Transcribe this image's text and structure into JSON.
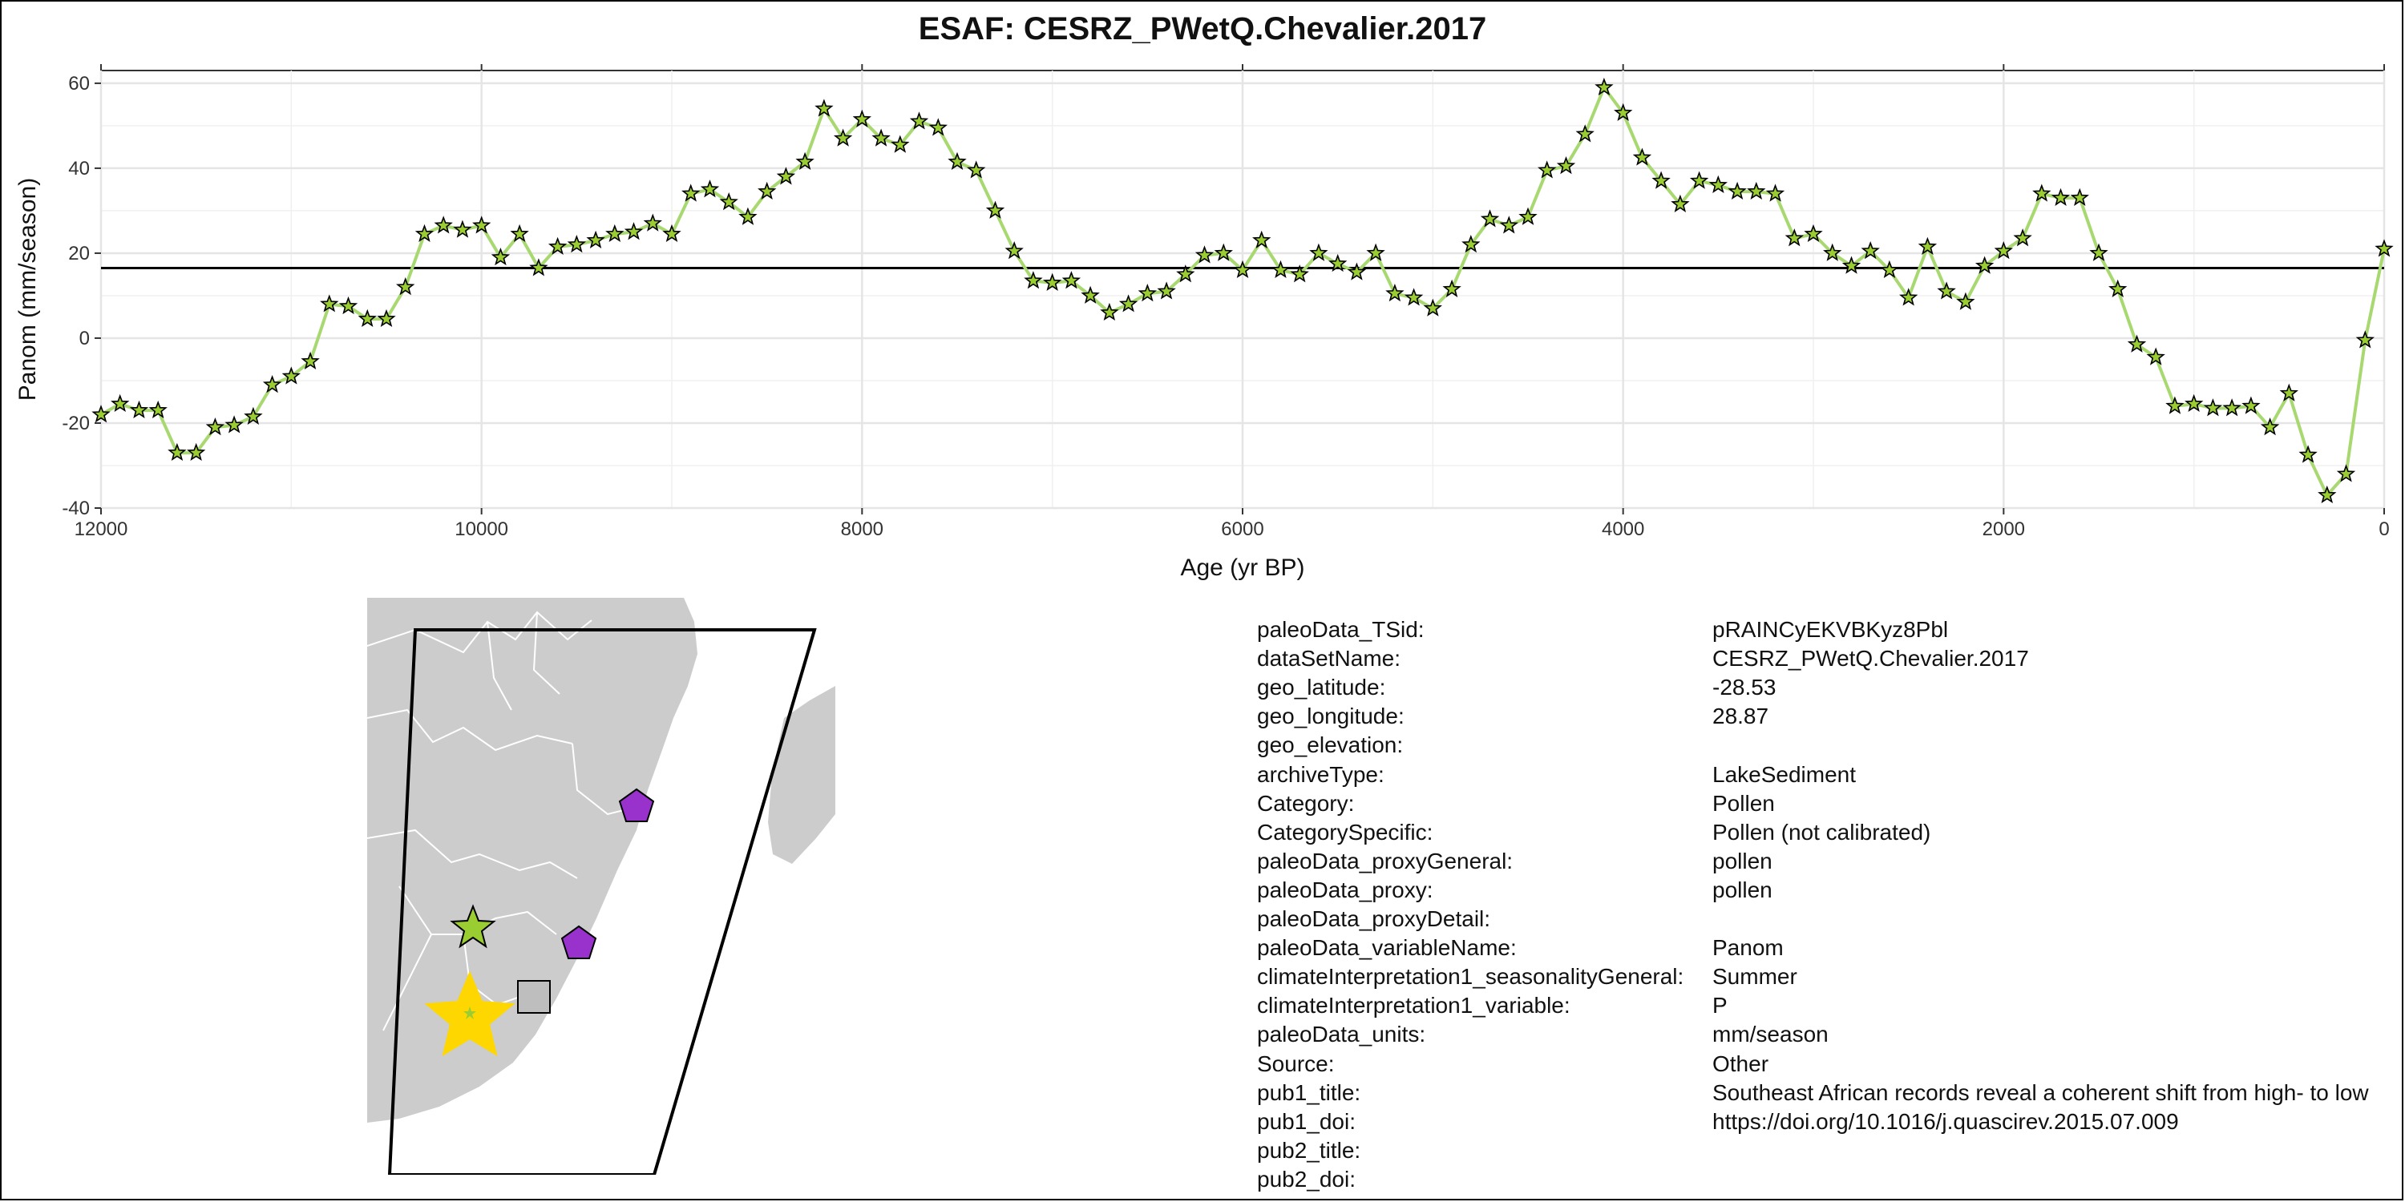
{
  "chart_data": {
    "type": "line",
    "title": "ESAF: CESRZ_PWetQ.Chevalier.2017",
    "xlabel": "Age (yr BP)",
    "ylabel": "Panom (mm/season)",
    "xlim": [
      12000,
      0
    ],
    "ylim": [
      -40,
      63
    ],
    "x_reversed": true,
    "x_ticks": [
      12000,
      10000,
      8000,
      6000,
      4000,
      2000,
      0
    ],
    "y_ticks": [
      -40,
      -20,
      0,
      20,
      40,
      60
    ],
    "grid": true,
    "reference_line_y": 16.5,
    "series": [
      {
        "line_color": "#a8d870",
        "marker": "star",
        "marker_fill": "#9acd32",
        "marker_edge": "#000000",
        "points": [
          [
            12000,
            -18
          ],
          [
            11900,
            -15.5
          ],
          [
            11800,
            -17
          ],
          [
            11700,
            -17
          ],
          [
            11600,
            -27
          ],
          [
            11500,
            -27
          ],
          [
            11400,
            -21
          ],
          [
            11300,
            -20.5
          ],
          [
            11200,
            -18.5
          ],
          [
            11100,
            -11
          ],
          [
            11000,
            -9
          ],
          [
            10900,
            -5.5
          ],
          [
            10800,
            8
          ],
          [
            10700,
            7.5
          ],
          [
            10600,
            4.5
          ],
          [
            10500,
            4.5
          ],
          [
            10400,
            12
          ],
          [
            10300,
            24.5
          ],
          [
            10200,
            26.5
          ],
          [
            10100,
            25.5
          ],
          [
            10000,
            26.5
          ],
          [
            9900,
            19
          ],
          [
            9800,
            24.5
          ],
          [
            9700,
            16.5
          ],
          [
            9600,
            21.5
          ],
          [
            9500,
            22
          ],
          [
            9400,
            23
          ],
          [
            9300,
            24.5
          ],
          [
            9200,
            25
          ],
          [
            9100,
            27
          ],
          [
            9000,
            24.5
          ],
          [
            8900,
            34
          ],
          [
            8800,
            35
          ],
          [
            8700,
            32
          ],
          [
            8600,
            28.5
          ],
          [
            8500,
            34.5
          ],
          [
            8400,
            38
          ],
          [
            8300,
            41.5
          ],
          [
            8200,
            54
          ],
          [
            8100,
            47
          ],
          [
            8000,
            51.5
          ],
          [
            7900,
            47
          ],
          [
            7800,
            45.5
          ],
          [
            7700,
            51
          ],
          [
            7600,
            49.5
          ],
          [
            7500,
            41.5
          ],
          [
            7400,
            39.5
          ],
          [
            7300,
            30
          ],
          [
            7200,
            20.5
          ],
          [
            7100,
            13.5
          ],
          [
            7000,
            13
          ],
          [
            6900,
            13.5
          ],
          [
            6800,
            10
          ],
          [
            6700,
            6
          ],
          [
            6600,
            8
          ],
          [
            6500,
            10.5
          ],
          [
            6400,
            11
          ],
          [
            6300,
            15
          ],
          [
            6200,
            19.5
          ],
          [
            6100,
            20
          ],
          [
            6000,
            16
          ],
          [
            5900,
            23
          ],
          [
            5800,
            16
          ],
          [
            5700,
            15
          ],
          [
            5600,
            20
          ],
          [
            5500,
            17.5
          ],
          [
            5400,
            15.5
          ],
          [
            5300,
            20
          ],
          [
            5200,
            10.5
          ],
          [
            5100,
            9.5
          ],
          [
            5000,
            7
          ],
          [
            4900,
            11.5
          ],
          [
            4800,
            22
          ],
          [
            4700,
            28
          ],
          [
            4600,
            26.5
          ],
          [
            4500,
            28.5
          ],
          [
            4400,
            39.5
          ],
          [
            4300,
            40.5
          ],
          [
            4200,
            48
          ],
          [
            4100,
            59
          ],
          [
            4000,
            53
          ],
          [
            3900,
            42.5
          ],
          [
            3800,
            37
          ],
          [
            3700,
            31.5
          ],
          [
            3600,
            37
          ],
          [
            3500,
            36
          ],
          [
            3400,
            34.5
          ],
          [
            3300,
            34.5
          ],
          [
            3200,
            34
          ],
          [
            3100,
            23.5
          ],
          [
            3000,
            24.5
          ],
          [
            2900,
            20
          ],
          [
            2800,
            17
          ],
          [
            2700,
            20.5
          ],
          [
            2600,
            16
          ],
          [
            2500,
            9.5
          ],
          [
            2400,
            21.5
          ],
          [
            2300,
            11
          ],
          [
            2200,
            8.5
          ],
          [
            2100,
            17
          ],
          [
            2000,
            20.5
          ],
          [
            1900,
            23.5
          ],
          [
            1800,
            34
          ],
          [
            1700,
            33
          ],
          [
            1600,
            33
          ],
          [
            1500,
            20
          ],
          [
            1400,
            11.5
          ],
          [
            1300,
            -1.5
          ],
          [
            1200,
            -4.5
          ],
          [
            1100,
            -16
          ],
          [
            1000,
            -15.5
          ],
          [
            900,
            -16.5
          ],
          [
            800,
            -16.5
          ],
          [
            700,
            -16
          ],
          [
            600,
            -21
          ],
          [
            500,
            -13
          ],
          [
            400,
            -27.5
          ],
          [
            300,
            -37
          ],
          [
            200,
            -32
          ],
          [
            100,
            -0.5
          ],
          [
            0,
            21
          ]
        ]
      }
    ]
  },
  "map": {
    "land_color": "#cccccc",
    "outline_color": "#000000",
    "markers": [
      {
        "icon": "star-icon",
        "color": "#9acd32",
        "role": "this record"
      },
      {
        "icon": "star-icon",
        "color": "#ffd700",
        "role": "other record"
      },
      {
        "icon": "square-icon",
        "color": "#bebebe",
        "role": "other record"
      },
      {
        "icon": "pentagon-icon",
        "color": "#9932cc",
        "role": "other record"
      },
      {
        "icon": "pentagon-icon",
        "color": "#9932cc",
        "role": "other record"
      }
    ]
  },
  "metadata": [
    {
      "key": "paleoData_TSid:",
      "value": "pRAINCyEKVBKyz8Pbl"
    },
    {
      "key": "dataSetName:",
      "value": "CESRZ_PWetQ.Chevalier.2017"
    },
    {
      "key": "geo_latitude:",
      "value": "-28.53"
    },
    {
      "key": "geo_longitude:",
      "value": "28.87"
    },
    {
      "key": "geo_elevation:",
      "value": ""
    },
    {
      "key": "archiveType:",
      "value": "LakeSediment"
    },
    {
      "key": "Category:",
      "value": "Pollen"
    },
    {
      "key": "CategorySpecific:",
      "value": "Pollen (not calibrated)"
    },
    {
      "key": "paleoData_proxyGeneral:",
      "value": "pollen"
    },
    {
      "key": "paleoData_proxy:",
      "value": "pollen"
    },
    {
      "key": "paleoData_proxyDetail:",
      "value": ""
    },
    {
      "key": "paleoData_variableName:",
      "value": "Panom"
    },
    {
      "key": "climateInterpretation1_seasonalityGeneral:",
      "value": "Summer"
    },
    {
      "key": "climateInterpretation1_variable:",
      "value": "P"
    },
    {
      "key": "paleoData_units:",
      "value": "mm/season"
    },
    {
      "key": "Source:",
      "value": "Other"
    },
    {
      "key": "pub1_title:",
      "value": "Southeast African records reveal a coherent shift from high- to low"
    },
    {
      "key": "pub1_doi:",
      "value": "https://doi.org/10.1016/j.quascirev.2015.07.009"
    },
    {
      "key": "pub2_title:",
      "value": ""
    },
    {
      "key": "pub2_doi:",
      "value": ""
    }
  ]
}
